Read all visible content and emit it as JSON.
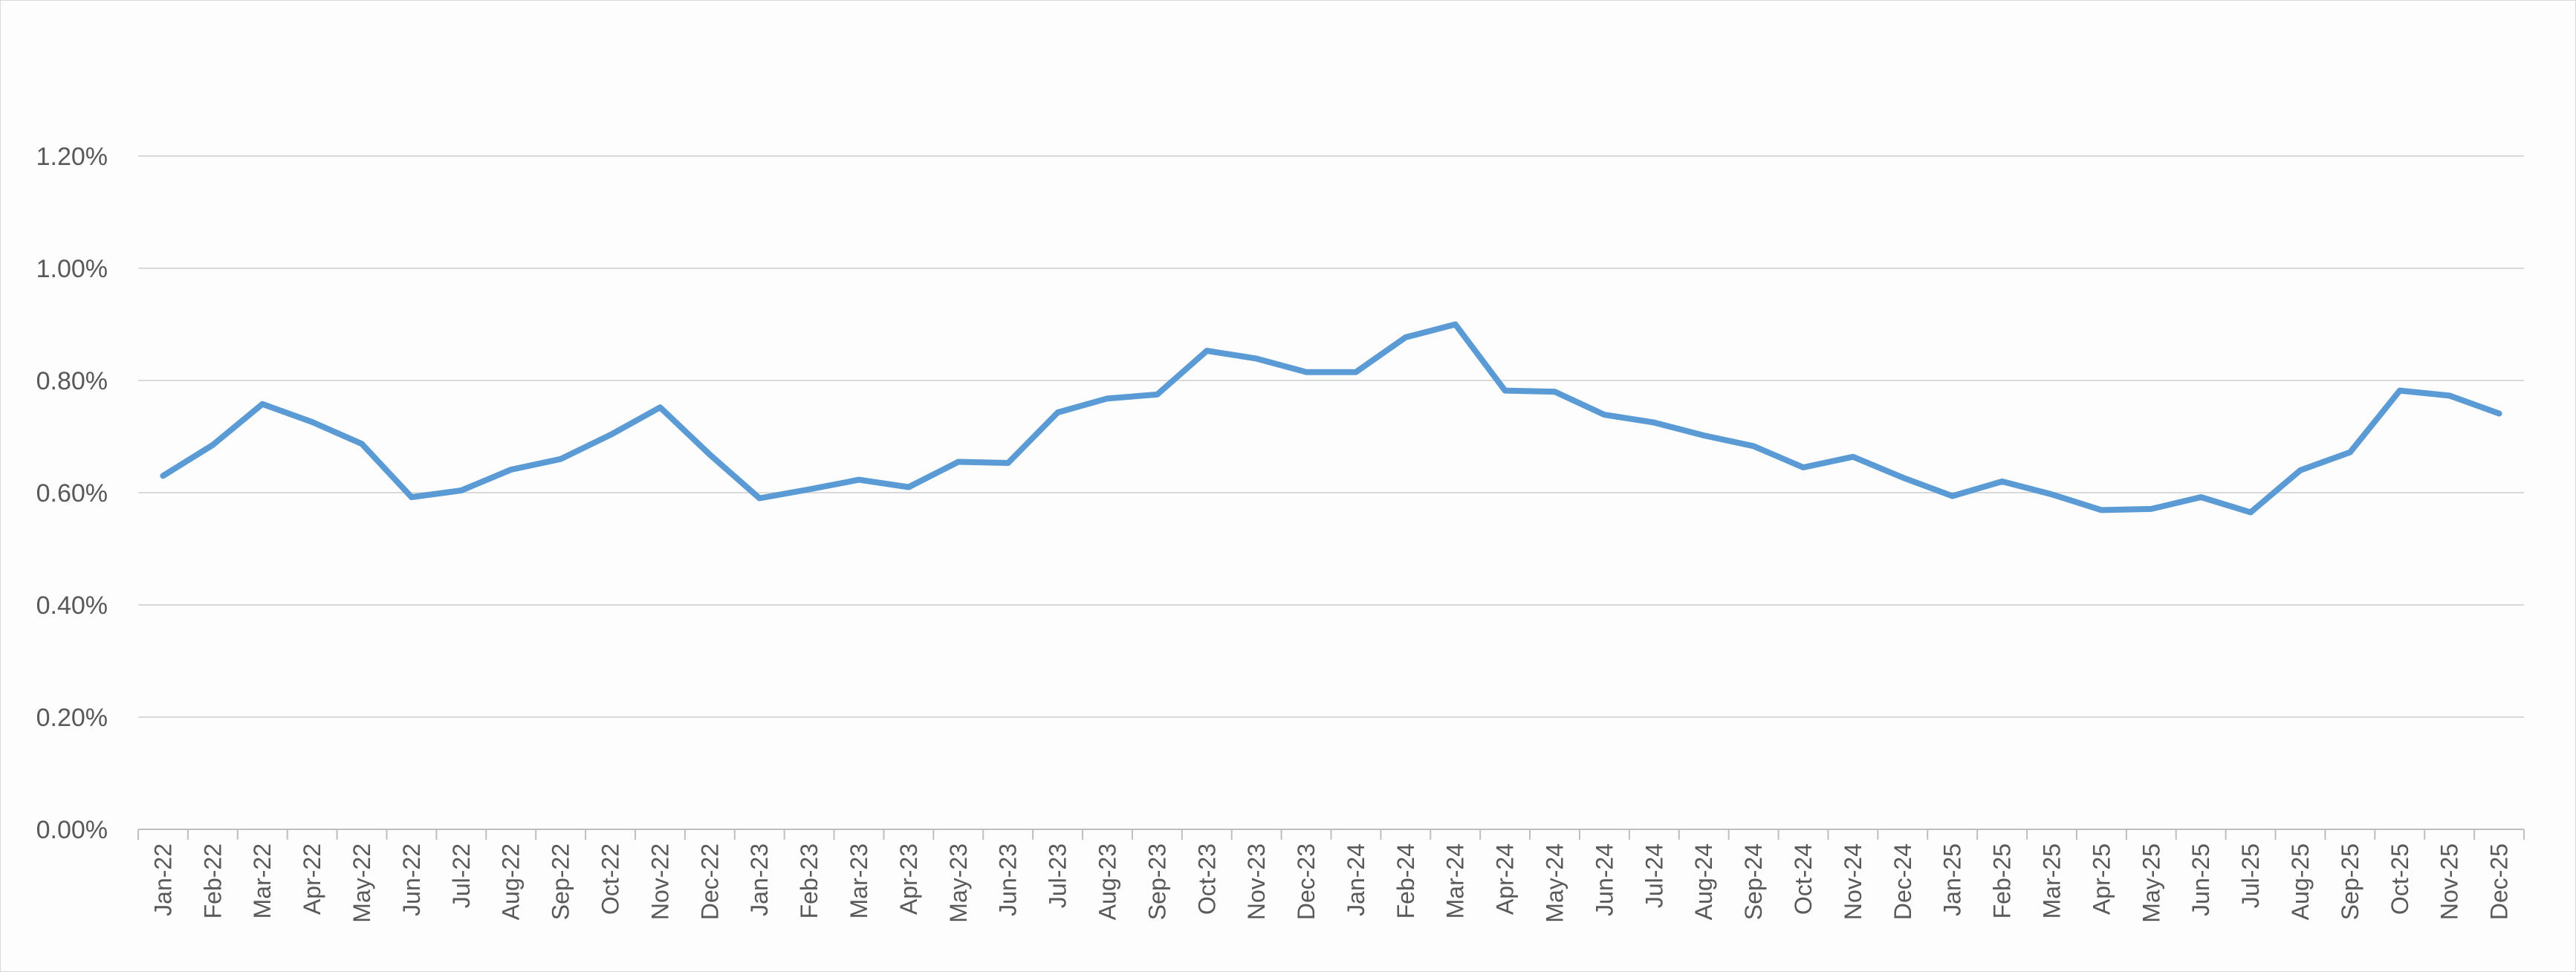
{
  "chart_data": {
    "type": "line",
    "title": "",
    "xlabel": "",
    "ylabel": "",
    "ylim": [
      0,
      1.2
    ],
    "y_tick_values": [
      0,
      0.2,
      0.4,
      0.6,
      0.8,
      1.0,
      1.2
    ],
    "y_tick_labels": [
      "0.00%",
      "0.20%",
      "0.40%",
      "0.60%",
      "0.80%",
      "1.00%",
      "1.20%"
    ],
    "grid": "horizontal",
    "legend": "none",
    "categories": [
      "Jan-22",
      "Feb-22",
      "Mar-22",
      "Apr-22",
      "May-22",
      "Jun-22",
      "Jul-22",
      "Aug-22",
      "Sep-22",
      "Oct-22",
      "Nov-22",
      "Dec-22",
      "Jan-23",
      "Feb-23",
      "Mar-23",
      "Apr-23",
      "May-23",
      "Jun-23",
      "Jul-23",
      "Aug-23",
      "Sep-23",
      "Oct-23",
      "Nov-23",
      "Dec-23",
      "Jan-24",
      "Feb-24",
      "Mar-24",
      "Apr-24",
      "May-24",
      "Jun-24",
      "Jul-24",
      "Aug-24",
      "Sep-24",
      "Oct-24",
      "Nov-24",
      "Dec-24",
      "Jan-25",
      "Feb-25",
      "Mar-25",
      "Apr-25",
      "May-25",
      "Jun-25",
      "Jul-25",
      "Aug-25",
      "Sep-25",
      "Oct-25",
      "Nov-25",
      "Dec-25"
    ],
    "series": [
      {
        "color": "#5b9bd5",
        "values": [
          0.63,
          0.685,
          0.758,
          0.726,
          0.687,
          0.592,
          0.604,
          0.641,
          0.66,
          0.703,
          0.752,
          0.668,
          0.59,
          0.606,
          0.623,
          0.61,
          0.655,
          0.653,
          0.743,
          0.768,
          0.775,
          0.853,
          0.839,
          0.815,
          0.815,
          0.877,
          0.9,
          0.782,
          0.78,
          0.739,
          0.725,
          0.702,
          0.683,
          0.645,
          0.664,
          0.627,
          0.594,
          0.62,
          0.597,
          0.569,
          0.571,
          0.592,
          0.565,
          0.64,
          0.672,
          0.782,
          0.773,
          0.741
        ]
      }
    ]
  },
  "colors": {
    "line": "#5b9bd5",
    "grid": "#d9d9d9",
    "axis": "#bfbfbf",
    "text": "#595959"
  }
}
